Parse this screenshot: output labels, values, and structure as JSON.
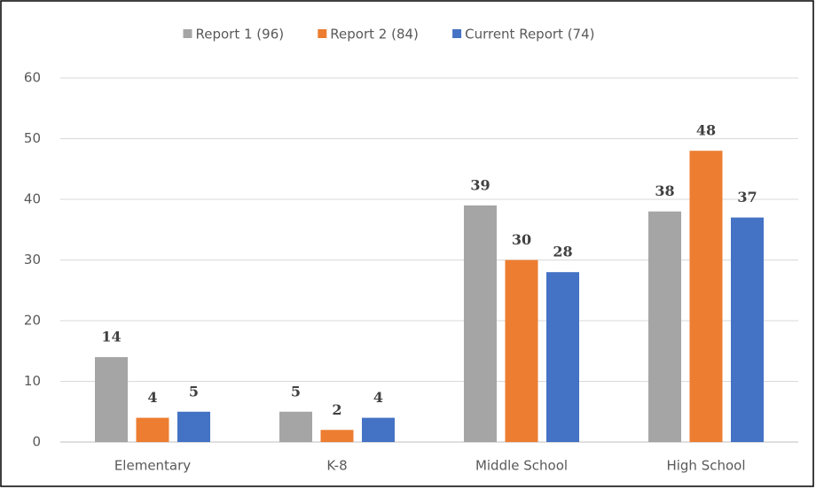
{
  "chart_data": {
    "type": "bar",
    "categories": [
      "Elementary",
      "K-8",
      "Middle School",
      "High School"
    ],
    "series": [
      {
        "name": "Report 1 (96)",
        "color": "#a5a5a5",
        "values": [
          14,
          5,
          39,
          38
        ]
      },
      {
        "name": "Report 2 (84)",
        "color": "#ed7d31",
        "values": [
          4,
          2,
          30,
          48
        ]
      },
      {
        "name": "Current Report (74)",
        "color": "#4472c4",
        "values": [
          5,
          4,
          28,
          37
        ]
      }
    ],
    "ylim": [
      0,
      60
    ],
    "yticks": [
      0,
      10,
      20,
      30,
      40,
      50,
      60
    ],
    "grid": true,
    "legend": "top"
  }
}
